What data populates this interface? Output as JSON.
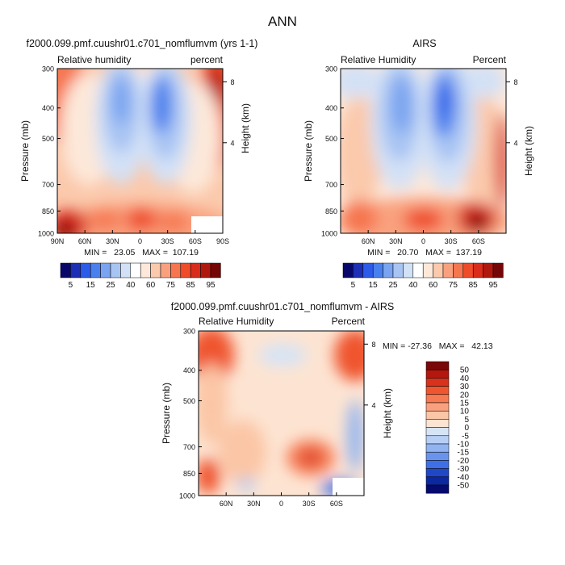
{
  "page_title": "ANN",
  "chart_data": [
    {
      "type": "heatmap",
      "id": "model",
      "title": "f2000.099.pmf.cuushr01.c701_nomflumvm (yrs 1-1)",
      "left_label": "Relative humidity",
      "right_label": "percent",
      "ylabel": "Pressure (mb)",
      "y2label": "Height (km)",
      "yticks": [
        "300",
        "400",
        "500",
        "700",
        "850",
        "1000"
      ],
      "xticks": [
        "90N",
        "60N",
        "30N",
        "0",
        "30S",
        "60S",
        "90S"
      ],
      "y2ticks": [
        "8",
        "4"
      ],
      "min_label": "MIN =",
      "min_value": "23.05",
      "max_label": "MAX =",
      "max_value": "107.19",
      "summary_line": "MIN =   23.05   MAX =  107.19",
      "colorbar_labels": [
        "5",
        "15",
        "25",
        "40",
        "60",
        "75",
        "85",
        "95"
      ]
    },
    {
      "type": "heatmap",
      "id": "obs",
      "title": "AIRS",
      "left_label": "Relative Humidity",
      "right_label": "Percent",
      "ylabel": "Pressure (mb)",
      "y2label": "Height (km)",
      "yticks": [
        "300",
        "400",
        "500",
        "700",
        "850",
        "1000"
      ],
      "xticks": [
        "60N",
        "30N",
        "0",
        "30S",
        "60S"
      ],
      "y2ticks": [
        "8",
        "4"
      ],
      "min_label": "MIN =",
      "min_value": "20.70",
      "max_label": "MAX =",
      "max_value": "137.19",
      "summary_line": "MIN =   20.70   MAX =  137.19",
      "colorbar_labels": [
        "5",
        "15",
        "25",
        "40",
        "60",
        "75",
        "85",
        "95"
      ]
    },
    {
      "type": "heatmap",
      "id": "diff",
      "title": "f2000.099.pmf.cuushr01.c701_nomflumvm - AIRS",
      "left_label": "Relative Humidity",
      "right_label": "Percent",
      "ylabel": "Pressure (mb)",
      "y2label": "Height (km)",
      "yticks": [
        "300",
        "400",
        "500",
        "700",
        "850",
        "1000"
      ],
      "xticks": [
        "60N",
        "30N",
        "0",
        "30S",
        "60S"
      ],
      "y2ticks": [
        "8",
        "4"
      ],
      "min_label": "MIN =",
      "min_value": "-27.36",
      "max_label": "MAX =",
      "max_value": "42.13",
      "summary_line": "MIN = -27.36   MAX =   42.13",
      "colorbar_labels": [
        "50",
        "40",
        "30",
        "20",
        "15",
        "10",
        "5",
        "0",
        "-5",
        "-10",
        "-15",
        "-20",
        "-30",
        "-40",
        "-50"
      ]
    }
  ],
  "colors": {
    "abs_scale": [
      "#08086b",
      "#1c2fb5",
      "#2b5be8",
      "#4a80ee",
      "#7aa4f0",
      "#a8c4f3",
      "#d3e1f6",
      "#ffffff",
      "#fde8d9",
      "#fbc9ac",
      "#f9a17e",
      "#f6764f",
      "#ef4c2a",
      "#d92c1b",
      "#b0180e",
      "#750606"
    ],
    "diff_scale": [
      "#7a0808",
      "#b5170f",
      "#d8311c",
      "#ef552e",
      "#f67a52",
      "#f9a17e",
      "#fbc6a6",
      "#fde4d2",
      "#d6e4f6",
      "#b8cff3",
      "#91b4f0",
      "#6a94ec",
      "#3f6fe6",
      "#1f47c8",
      "#0c28a0",
      "#050a6e"
    ]
  }
}
